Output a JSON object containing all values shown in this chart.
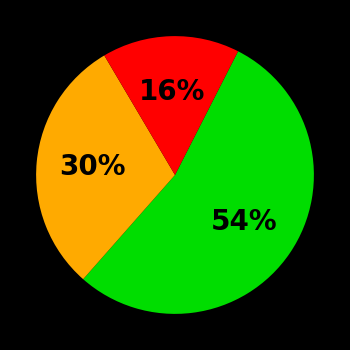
{
  "slices": [
    54,
    30,
    16
  ],
  "colors": [
    "#00dd00",
    "#ffaa00",
    "#ff0000"
  ],
  "labels": [
    "54%",
    "30%",
    "16%"
  ],
  "background_color": "#000000",
  "text_color": "#000000",
  "startangle": 63,
  "fontsize": 20,
  "label_r": 0.6
}
